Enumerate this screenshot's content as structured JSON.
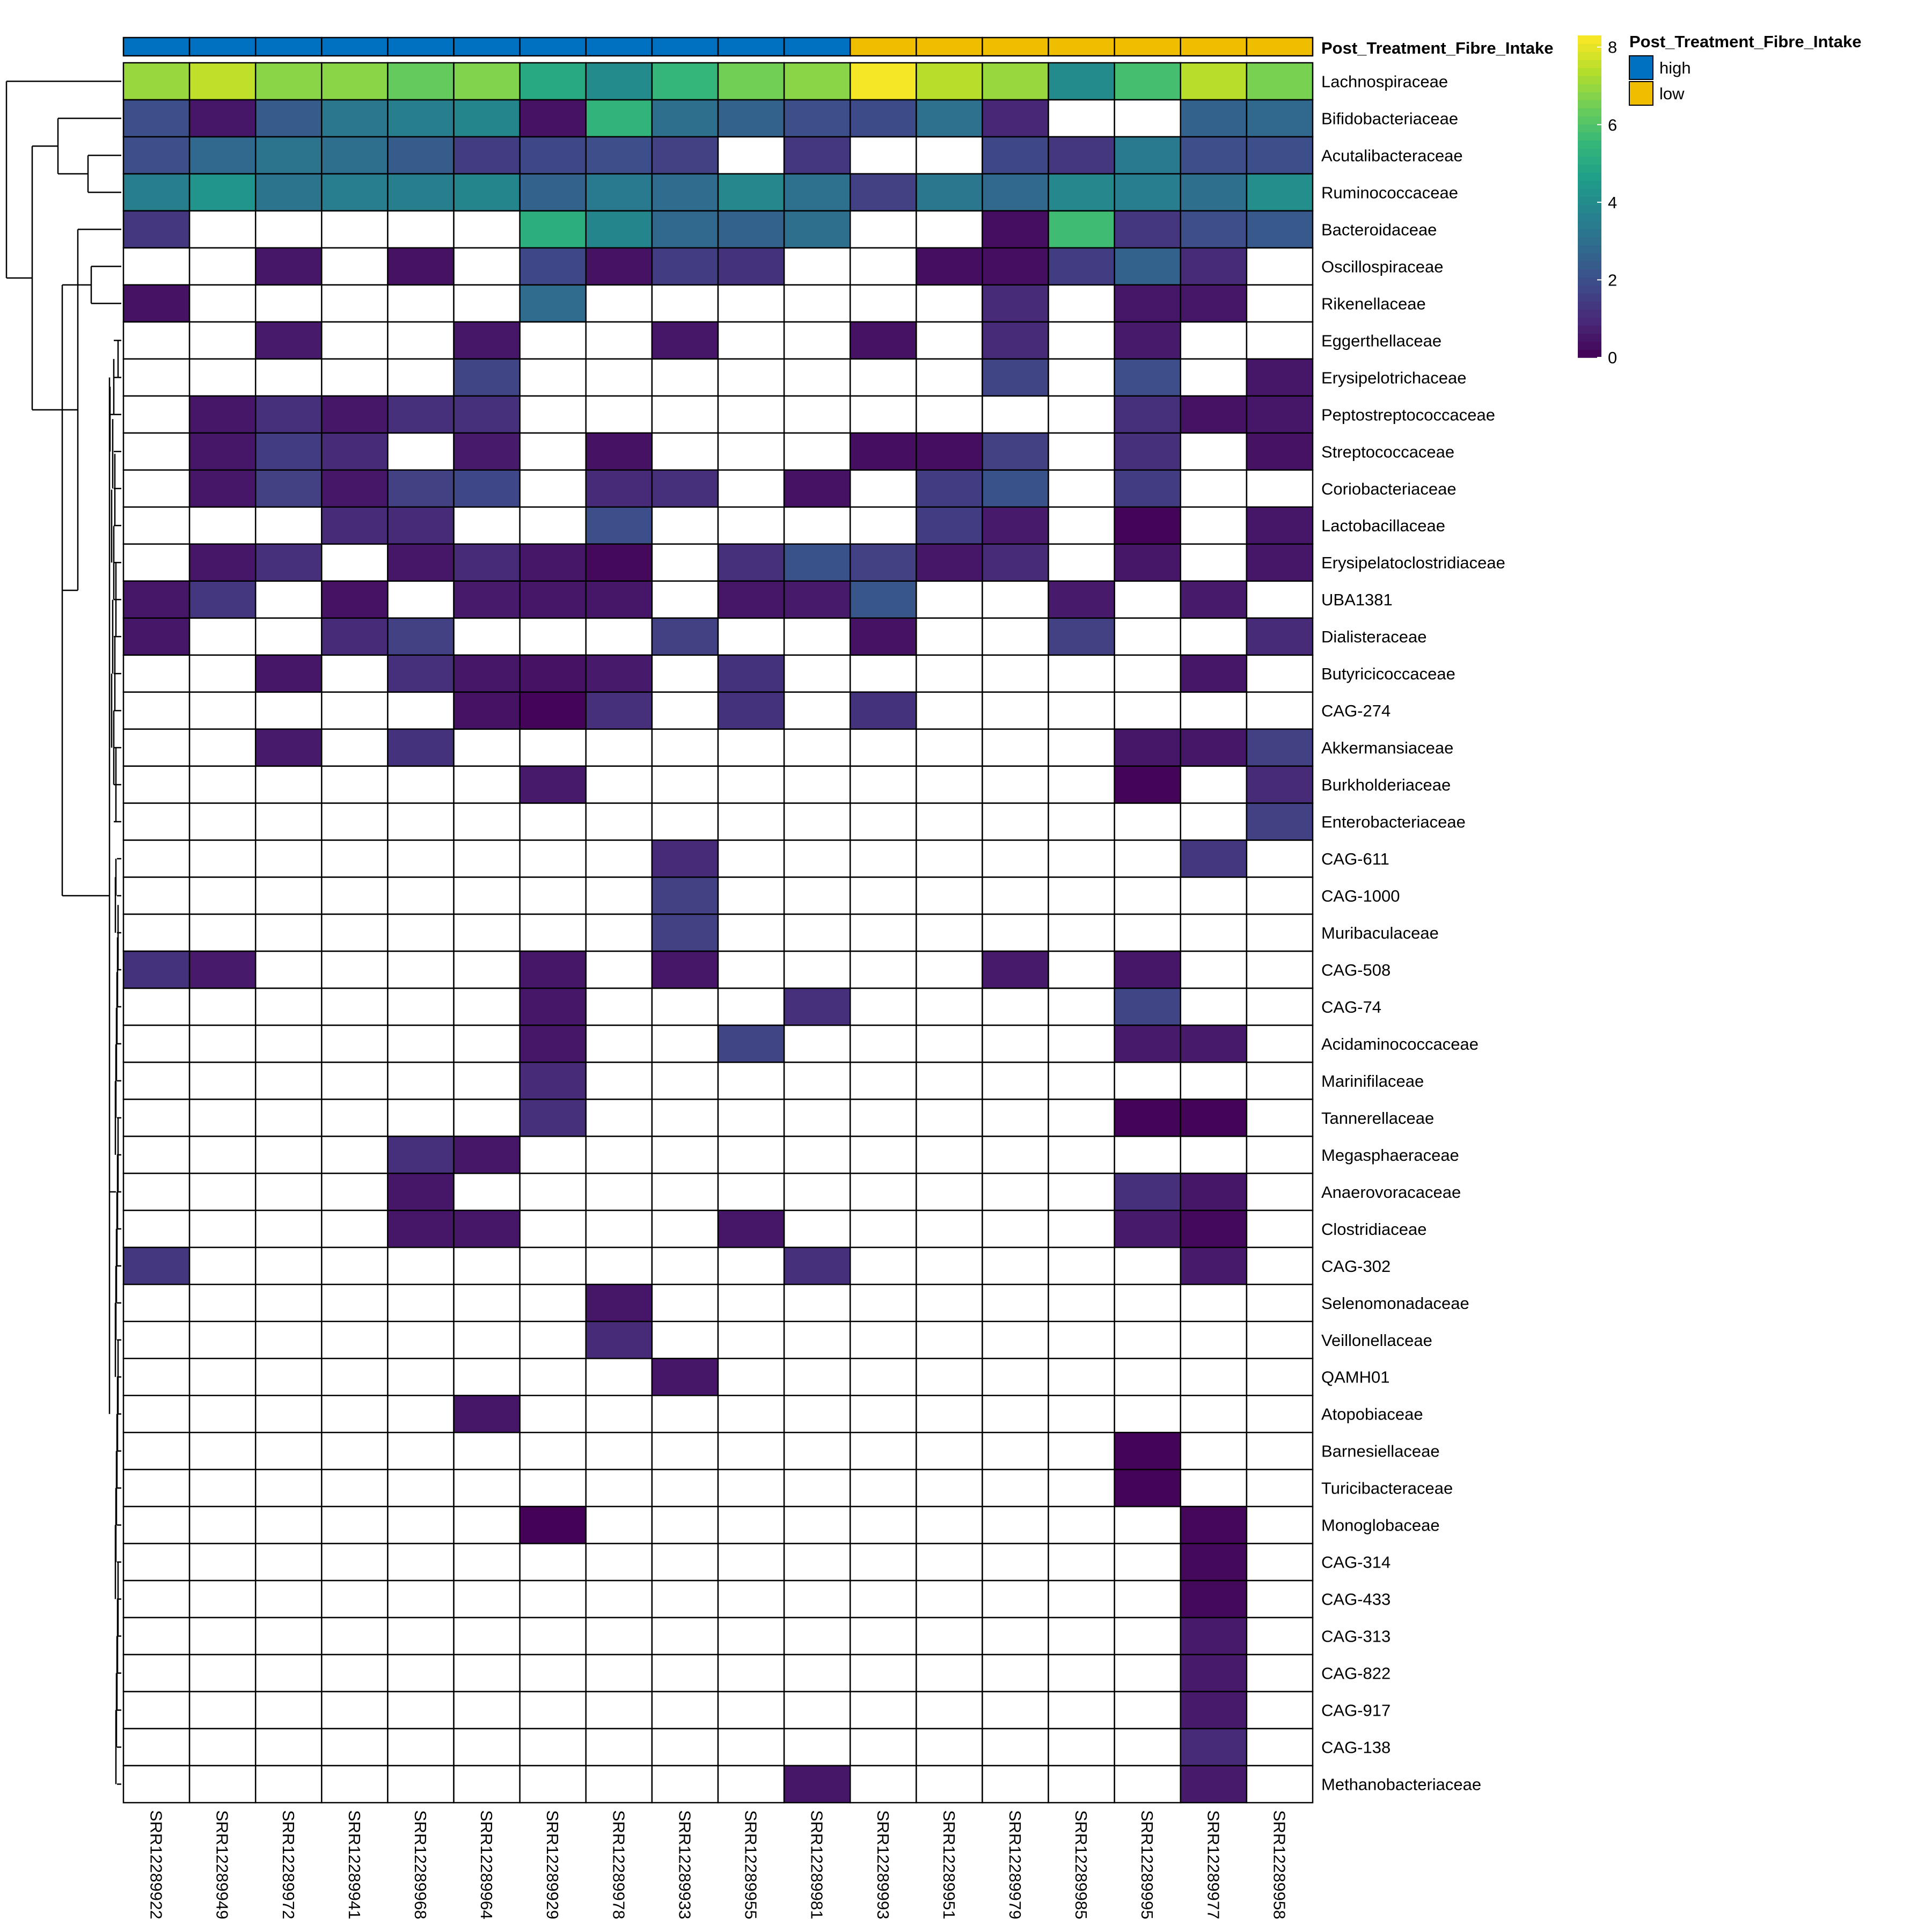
{
  "chart_data": {
    "type": "heatmap",
    "title": "",
    "xlabel": "",
    "ylabel": "",
    "columns": [
      "SRR12289922",
      "SRR12289949",
      "SRR12289972",
      "SRR12289941",
      "SRR12289968",
      "SRR12289964",
      "SRR12289929",
      "SRR12289978",
      "SRR12289933",
      "SRR12289955",
      "SRR12289981",
      "SRR12289993",
      "SRR12289951",
      "SRR12289979",
      "SRR12289985",
      "SRR12289995",
      "SRR12289977",
      "SRR12289958"
    ],
    "rows": [
      "Lachnospiraceae",
      "Bifidobacteriaceae",
      "Acutalibacteraceae",
      "Ruminococcaceae",
      "Bacteroidaceae",
      "Oscillospiraceae",
      "Rikenellaceae",
      "Eggerthellaceae",
      "Erysipelotrichaceae",
      "Peptostreptococcaceae",
      "Streptococcaceae",
      "Coriobacteriaceae",
      "Lactobacillaceae",
      "Erysipelatoclostridiaceae",
      "UBA1381",
      "Dialisteraceae",
      "Butyricicoccaceae",
      "CAG-274",
      "Akkermansiaceae",
      "Burkholderiaceae",
      "Enterobacteriaceae",
      "CAG-611",
      "CAG-1000",
      "Muribaculaceae",
      "CAG-508",
      "CAG-74",
      "Acidaminococcaceae",
      "Marinifilaceae",
      "Tannerellaceae",
      "Megasphaeraceae",
      "Anaerovoracaceae",
      "Clostridiaceae",
      "CAG-302",
      "Selenomonadaceae",
      "Veillonellaceae",
      "QAMH01",
      "Atopobiaceae",
      "Barnesiellaceae",
      "Turicibacteraceae",
      "Monoglobaceae",
      "CAG-314",
      "CAG-433",
      "CAG-313",
      "CAG-822",
      "CAG-917",
      "CAG-138",
      "Methanobacteriaceae"
    ],
    "values": [
      [
        7.0,
        7.5,
        6.8,
        6.8,
        6.3,
        6.7,
        5.0,
        4.0,
        5.5,
        6.5,
        6.8,
        8.2,
        7.4,
        7.0,
        4.0,
        5.8,
        7.4,
        6.6
      ],
      [
        2.0,
        0.5,
        2.4,
        3.3,
        3.6,
        3.8,
        0.4,
        5.4,
        3.0,
        2.6,
        2.0,
        1.9,
        3.1,
        0.9,
        null,
        null,
        2.6,
        2.8
      ],
      [
        2.0,
        2.8,
        3.2,
        3.0,
        2.4,
        1.5,
        1.8,
        2.0,
        1.6,
        null,
        1.3,
        null,
        null,
        1.8,
        1.3,
        3.4,
        2.0,
        2.0
      ],
      [
        3.6,
        4.3,
        3.2,
        3.5,
        3.6,
        3.8,
        2.6,
        3.4,
        2.9,
        3.9,
        3.1,
        1.6,
        3.3,
        2.8,
        3.9,
        3.5,
        3.0,
        4.1
      ],
      [
        1.3,
        null,
        null,
        null,
        null,
        null,
        5.2,
        3.8,
        2.8,
        2.6,
        3.0,
        null,
        null,
        0.3,
        5.7,
        1.3,
        2.0,
        2.3
      ],
      [
        null,
        null,
        0.5,
        null,
        0.4,
        null,
        1.8,
        0.4,
        1.5,
        1.2,
        null,
        null,
        0.3,
        0.3,
        1.5,
        2.6,
        1.0,
        null
      ],
      [
        0.4,
        null,
        null,
        null,
        null,
        null,
        2.9,
        null,
        null,
        null,
        null,
        null,
        null,
        1.0,
        null,
        0.5,
        0.5,
        null
      ],
      [
        null,
        null,
        0.6,
        null,
        null,
        0.5,
        null,
        null,
        0.5,
        null,
        null,
        0.4,
        null,
        1.0,
        null,
        0.6,
        null,
        null
      ],
      [
        null,
        null,
        null,
        null,
        null,
        1.7,
        null,
        null,
        null,
        null,
        null,
        null,
        null,
        1.7,
        null,
        2.0,
        null,
        0.5
      ],
      [
        null,
        0.5,
        1.1,
        0.5,
        1.1,
        1.1,
        null,
        null,
        null,
        null,
        null,
        null,
        null,
        null,
        null,
        1.1,
        0.4,
        0.5
      ],
      [
        null,
        0.5,
        1.5,
        1.0,
        null,
        0.6,
        null,
        0.4,
        null,
        null,
        null,
        0.3,
        0.3,
        1.6,
        null,
        1.1,
        null,
        0.4
      ],
      [
        null,
        0.5,
        1.6,
        0.5,
        1.6,
        1.8,
        null,
        1.0,
        1.1,
        null,
        0.4,
        null,
        1.5,
        2.1,
        null,
        1.5,
        null,
        null
      ],
      [
        null,
        null,
        null,
        1.0,
        1.0,
        null,
        null,
        2.0,
        null,
        null,
        null,
        null,
        1.5,
        0.6,
        null,
        0.1,
        null,
        0.5
      ],
      [
        null,
        0.5,
        1.1,
        null,
        0.5,
        1.0,
        0.5,
        0.2,
        null,
        1.1,
        2.1,
        1.6,
        0.5,
        1.0,
        null,
        0.5,
        null,
        0.5
      ],
      [
        0.5,
        1.3,
        null,
        0.4,
        null,
        0.6,
        0.5,
        0.5,
        null,
        0.5,
        0.6,
        2.2,
        null,
        null,
        0.6,
        null,
        0.6,
        null
      ],
      [
        0.5,
        null,
        null,
        1.0,
        1.6,
        null,
        null,
        null,
        1.6,
        null,
        null,
        0.4,
        null,
        null,
        1.6,
        null,
        null,
        1.0
      ],
      [
        null,
        null,
        0.5,
        null,
        1.1,
        0.5,
        0.4,
        0.6,
        null,
        1.2,
        null,
        null,
        null,
        null,
        null,
        null,
        0.5,
        null
      ],
      [
        null,
        null,
        null,
        null,
        null,
        0.4,
        0.1,
        1.1,
        null,
        1.2,
        null,
        1.2,
        null,
        null,
        null,
        null,
        null,
        null
      ],
      [
        null,
        null,
        0.6,
        null,
        1.2,
        null,
        null,
        null,
        null,
        null,
        null,
        null,
        null,
        null,
        null,
        0.5,
        0.5,
        1.6
      ],
      [
        null,
        null,
        null,
        null,
        null,
        null,
        0.6,
        null,
        null,
        null,
        null,
        null,
        null,
        null,
        null,
        0.1,
        null,
        1.0
      ],
      [
        null,
        null,
        null,
        null,
        null,
        null,
        null,
        null,
        null,
        null,
        null,
        null,
        null,
        null,
        null,
        null,
        null,
        1.6
      ],
      [
        null,
        null,
        null,
        null,
        null,
        null,
        null,
        null,
        1.0,
        null,
        null,
        null,
        null,
        null,
        null,
        null,
        1.3,
        null
      ],
      [
        null,
        null,
        null,
        null,
        null,
        null,
        null,
        null,
        1.6,
        null,
        null,
        null,
        null,
        null,
        null,
        null,
        null,
        null
      ],
      [
        null,
        null,
        null,
        null,
        null,
        null,
        null,
        null,
        1.6,
        null,
        null,
        null,
        null,
        null,
        null,
        null,
        null,
        null
      ],
      [
        1.2,
        0.6,
        null,
        null,
        null,
        null,
        0.5,
        null,
        0.5,
        null,
        null,
        null,
        null,
        0.6,
        null,
        0.5,
        null,
        null
      ],
      [
        null,
        null,
        null,
        null,
        null,
        null,
        0.5,
        null,
        null,
        null,
        1.1,
        null,
        null,
        null,
        null,
        1.7,
        null,
        null
      ],
      [
        null,
        null,
        null,
        null,
        null,
        null,
        0.5,
        null,
        null,
        1.7,
        null,
        null,
        null,
        null,
        null,
        0.6,
        0.6,
        null
      ],
      [
        null,
        null,
        null,
        null,
        null,
        null,
        1.0,
        null,
        null,
        null,
        null,
        null,
        null,
        null,
        null,
        null,
        null,
        null
      ],
      [
        null,
        null,
        null,
        null,
        null,
        null,
        1.1,
        null,
        null,
        null,
        null,
        null,
        null,
        null,
        null,
        0.1,
        0.1,
        null
      ],
      [
        null,
        null,
        null,
        null,
        1.1,
        0.5,
        null,
        null,
        null,
        null,
        null,
        null,
        null,
        null,
        null,
        null,
        null,
        null
      ],
      [
        null,
        null,
        null,
        null,
        0.5,
        null,
        null,
        null,
        null,
        null,
        null,
        null,
        null,
        null,
        null,
        1.1,
        0.5,
        null
      ],
      [
        null,
        null,
        null,
        null,
        0.5,
        0.5,
        null,
        null,
        null,
        0.5,
        null,
        null,
        null,
        null,
        null,
        0.6,
        0.2,
        null
      ],
      [
        1.3,
        null,
        null,
        null,
        null,
        null,
        null,
        null,
        null,
        null,
        1.1,
        null,
        null,
        null,
        null,
        null,
        0.6,
        null
      ],
      [
        null,
        null,
        null,
        null,
        null,
        null,
        null,
        0.5,
        null,
        null,
        null,
        null,
        null,
        null,
        null,
        null,
        null,
        null
      ],
      [
        null,
        null,
        null,
        null,
        null,
        null,
        null,
        1.0,
        null,
        null,
        null,
        null,
        null,
        null,
        null,
        null,
        null,
        null
      ],
      [
        null,
        null,
        null,
        null,
        null,
        null,
        null,
        null,
        0.5,
        null,
        null,
        null,
        null,
        null,
        null,
        null,
        null,
        null
      ],
      [
        null,
        null,
        null,
        null,
        null,
        0.5,
        null,
        null,
        null,
        null,
        null,
        null,
        null,
        null,
        null,
        null,
        null,
        null
      ],
      [
        null,
        null,
        null,
        null,
        null,
        null,
        null,
        null,
        null,
        null,
        null,
        null,
        null,
        null,
        null,
        0.1,
        null,
        null
      ],
      [
        null,
        null,
        null,
        null,
        null,
        null,
        null,
        null,
        null,
        null,
        null,
        null,
        null,
        null,
        null,
        0.1,
        null,
        null
      ],
      [
        null,
        null,
        null,
        null,
        null,
        null,
        0.05,
        null,
        null,
        null,
        null,
        null,
        null,
        null,
        null,
        null,
        0.15,
        null
      ],
      [
        null,
        null,
        null,
        null,
        null,
        null,
        null,
        null,
        null,
        null,
        null,
        null,
        null,
        null,
        null,
        null,
        0.2,
        null
      ],
      [
        null,
        null,
        null,
        null,
        null,
        null,
        null,
        null,
        null,
        null,
        null,
        null,
        null,
        null,
        null,
        null,
        0.2,
        null
      ],
      [
        null,
        null,
        null,
        null,
        null,
        null,
        null,
        null,
        null,
        null,
        null,
        null,
        null,
        null,
        null,
        null,
        0.6,
        null
      ],
      [
        null,
        null,
        null,
        null,
        null,
        null,
        null,
        null,
        null,
        null,
        null,
        null,
        null,
        null,
        null,
        null,
        0.6,
        null
      ],
      [
        null,
        null,
        null,
        null,
        null,
        null,
        null,
        null,
        null,
        null,
        null,
        null,
        null,
        null,
        null,
        null,
        0.6,
        null
      ],
      [
        null,
        null,
        null,
        null,
        null,
        null,
        null,
        null,
        null,
        null,
        null,
        null,
        null,
        null,
        null,
        null,
        1.0,
        null
      ],
      [
        null,
        null,
        null,
        null,
        null,
        null,
        null,
        null,
        null,
        null,
        0.5,
        null,
        null,
        null,
        null,
        null,
        0.6,
        null
      ]
    ],
    "missing_color": "#ffffff",
    "colorbar": {
      "min": 0,
      "max": 8.3,
      "ticks": [
        0,
        2,
        4,
        6,
        8
      ],
      "palette": "viridis",
      "position": "top-right"
    },
    "annotation": {
      "title": "Post_Treatment_Fibre_Intake",
      "groups": [
        "high",
        "high",
        "high",
        "high",
        "high",
        "high",
        "high",
        "high",
        "high",
        "high",
        "high",
        "low",
        "low",
        "low",
        "low",
        "low",
        "low",
        "low"
      ],
      "levels": [
        {
          "name": "high",
          "color": "#0070C0"
        },
        {
          "name": "low",
          "color": "#F0BE00"
        }
      ]
    },
    "legend_placement": "top-right",
    "row_dendrogram": true,
    "column_dendrogram": false
  }
}
